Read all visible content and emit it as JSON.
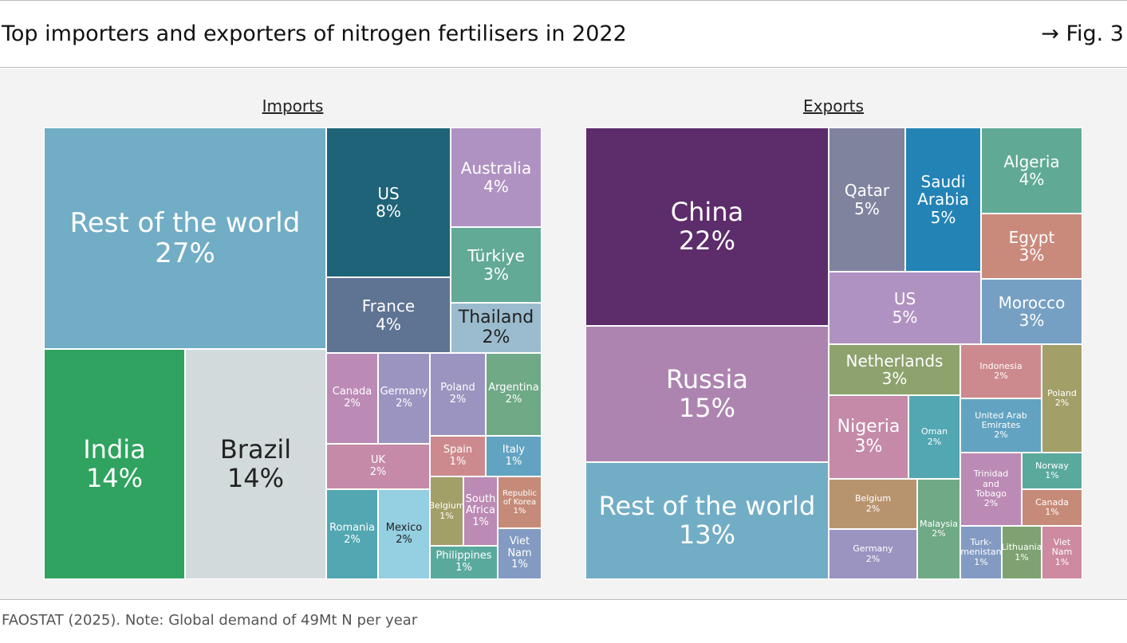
{
  "header": {
    "title": "Top importers and exporters of nitrogen fertilisers in 2022",
    "fig_ref": "→ Fig. 3"
  },
  "footer": {
    "source": "FAOSTAT (2025). Note: Global demand of 49Mt N per year"
  },
  "chart_data": [
    {
      "type": "treemap",
      "title": "Imports",
      "items": [
        {
          "label": "Rest of the world",
          "value": 27,
          "color": "#72adc6"
        },
        {
          "label": "India",
          "value": 14,
          "color": "#2fa35f"
        },
        {
          "label": "Brazil",
          "value": 14,
          "color": "#d2dadc"
        },
        {
          "label": "US",
          "value": 8,
          "color": "#1f6378"
        },
        {
          "label": "France",
          "value": 4,
          "color": "#5f7393"
        },
        {
          "label": "Australia",
          "value": 4,
          "color": "#b092c2"
        },
        {
          "label": "Türkiye",
          "value": 3,
          "color": "#62a996"
        },
        {
          "label": "Thailand",
          "value": 2,
          "color": "#9bbcce"
        },
        {
          "label": "Canada",
          "value": 2,
          "color": "#bb8ab5"
        },
        {
          "label": "Germany",
          "value": 2,
          "color": "#9b94c0"
        },
        {
          "label": "Poland",
          "value": 2,
          "color": "#9b94c0"
        },
        {
          "label": "Argentina",
          "value": 2,
          "color": "#6fa986"
        },
        {
          "label": "UK",
          "value": 2,
          "color": "#c48aa8"
        },
        {
          "label": "Spain",
          "value": 1,
          "color": "#cd8a8e"
        },
        {
          "label": "Italy",
          "value": 1,
          "color": "#62a3c1"
        },
        {
          "label": "Romania",
          "value": 2,
          "color": "#52a7b2"
        },
        {
          "label": "Mexico",
          "value": 2,
          "color": "#94cfe2"
        },
        {
          "label": "Belgium",
          "value": 1,
          "color": "#a39f68"
        },
        {
          "label": "South\nAfrica",
          "value": 1,
          "color": "#bb8ab5"
        },
        {
          "label": "Republic\nof Korea",
          "value": 1,
          "color": "#c68b78"
        },
        {
          "label": "Philippines",
          "value": 1,
          "color": "#5aa99d"
        },
        {
          "label": "Viet\nNam",
          "value": 1,
          "color": "#839bc2"
        }
      ]
    },
    {
      "type": "treemap",
      "title": "Exports",
      "items": [
        {
          "label": "China",
          "value": 22,
          "color": "#5d2c6a"
        },
        {
          "label": "Russia",
          "value": 15,
          "color": "#ad84b0"
        },
        {
          "label": "Rest of the world",
          "value": 13,
          "color": "#72adc6"
        },
        {
          "label": "Qatar",
          "value": 5,
          "color": "#80839e"
        },
        {
          "label": "Saudi\nArabia",
          "value": 5,
          "color": "#2383b5"
        },
        {
          "label": "Algeria",
          "value": 4,
          "color": "#60a995"
        },
        {
          "label": "Egypt",
          "value": 3,
          "color": "#c98a7c"
        },
        {
          "label": "US",
          "value": 5,
          "color": "#b092c2"
        },
        {
          "label": "Morocco",
          "value": 3,
          "color": "#76a0c3"
        },
        {
          "label": "Netherlands",
          "value": 3,
          "color": "#8da26d"
        },
        {
          "label": "Nigeria",
          "value": 3,
          "color": "#c48aa8"
        },
        {
          "label": "Oman",
          "value": 2,
          "color": "#52a7b2"
        },
        {
          "label": "Indonesia",
          "value": 2,
          "color": "#cd8a8e"
        },
        {
          "label": "Poland",
          "value": 2,
          "color": "#a39f68"
        },
        {
          "label": "United Arab\nEmirates",
          "value": 2,
          "color": "#62a3c1"
        },
        {
          "label": "Belgium",
          "value": 2,
          "color": "#b8946e"
        },
        {
          "label": "Germany",
          "value": 2,
          "color": "#9b94c0"
        },
        {
          "label": "Malaysia",
          "value": 2,
          "color": "#6fa986"
        },
        {
          "label": "Trinidad\nand\nTobago",
          "value": 2,
          "color": "#bb8ab5"
        },
        {
          "label": "Norway",
          "value": 1,
          "color": "#5aa99d"
        },
        {
          "label": "Canada",
          "value": 1,
          "color": "#c68b78"
        },
        {
          "label": "Turk-\nmenistan",
          "value": 1,
          "color": "#839bc2"
        },
        {
          "label": "Lithuania",
          "value": 1,
          "color": "#7fa272"
        },
        {
          "label": "Viet Nam",
          "value": 1,
          "color": "#cd8aa0"
        }
      ]
    }
  ]
}
